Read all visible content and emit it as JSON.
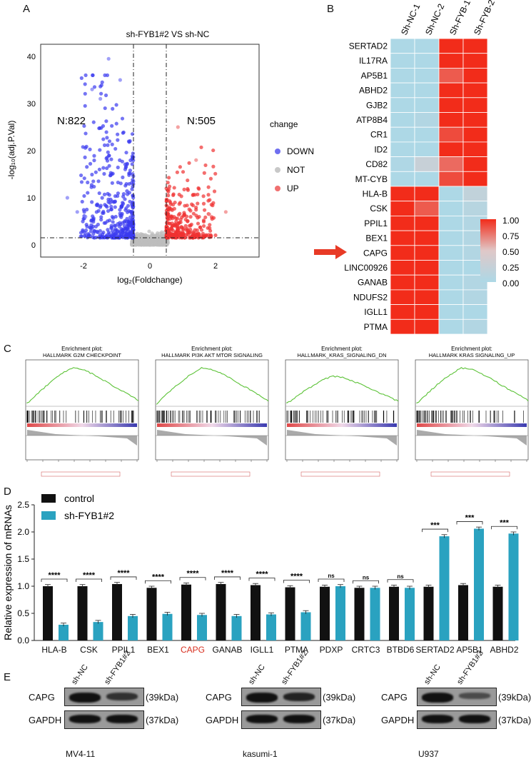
{
  "panels": {
    "a": "A",
    "b": "B",
    "c": "C",
    "d": "D",
    "e": "E"
  },
  "volcano": {
    "title": "sh-FYB1#2  VS sh-NC",
    "xlabel": "log₂(Foldchange)",
    "ylabel": "-log₁₀(adj.P.Val)",
    "n_down": "N:822",
    "n_up": "N:505",
    "legend_title": "change",
    "legend": [
      {
        "label": "DOWN",
        "color": "#6f6ff0"
      },
      {
        "label": "NOT",
        "color": "#c8c8c8"
      },
      {
        "label": "UP",
        "color": "#f07070"
      }
    ],
    "xticks": [
      "-2",
      "0",
      "2"
    ],
    "yticks": [
      "0",
      "10",
      "20",
      "30",
      "40"
    ]
  },
  "heatmap": {
    "columns": [
      "Sh-NC-1",
      "Sh-NC-2",
      "Sh-FYB-1",
      "Sh-FYB-2"
    ],
    "rows": [
      "SERTAD2",
      "IL17RA",
      "AP5B1",
      "ABHD2",
      "GJB2",
      "ATP8B4",
      "CR1",
      "ID2",
      "CD82",
      "MT-CYB",
      "HLA-B",
      "CSK",
      "PPIL1",
      "BEX1",
      "CAPG",
      "LINC00926",
      "GANAB",
      "NDUFS2",
      "IGLL1",
      "PTMA"
    ],
    "values": [
      [
        0,
        0,
        1,
        1
      ],
      [
        0,
        0,
        1,
        1
      ],
      [
        0,
        0,
        0.85,
        1
      ],
      [
        0,
        0,
        1,
        1
      ],
      [
        0,
        0,
        1,
        1
      ],
      [
        0,
        0.05,
        1,
        1
      ],
      [
        0,
        0,
        0.9,
        1
      ],
      [
        0,
        0,
        1,
        1
      ],
      [
        0.02,
        0.25,
        0.8,
        1
      ],
      [
        0,
        0,
        0.9,
        1
      ],
      [
        1,
        1,
        0,
        0.2
      ],
      [
        1,
        0.85,
        0,
        0.1
      ],
      [
        1,
        1,
        0,
        0.05
      ],
      [
        1,
        1,
        0,
        0.05
      ],
      [
        1,
        1,
        0,
        0.05
      ],
      [
        1,
        1,
        0,
        0
      ],
      [
        1,
        1,
        0,
        0.05
      ],
      [
        1,
        1,
        0,
        0.05
      ],
      [
        1,
        1,
        0,
        0
      ],
      [
        1,
        1,
        0,
        0.05
      ]
    ],
    "scale_ticks": [
      "1.00",
      "0.75",
      "0.50",
      "0.25",
      "0.00"
    ],
    "highlight_row": "CAPG"
  },
  "gsea": [
    {
      "top": "Enrichment plot:",
      "name": "HALLMARK G2M CHECKPOINT"
    },
    {
      "top": "Enrichment plot:",
      "name": "HALLMARK PI3K AKT MTOR SIGNALING"
    },
    {
      "top": "Enrichment plot:",
      "name": "HALLMARK_KRAS_SIGNALING_DN"
    },
    {
      "top": "Enrichment plot:",
      "name": "HALLMARK KRAS SIGNALING_UP"
    }
  ],
  "chart_data": {
    "type": "bar",
    "ylabel": "Relative expression of mRNAs",
    "ylim": [
      0,
      2.5
    ],
    "yticks": [
      "0.0",
      "0.5",
      "1.0",
      "1.5",
      "2.0",
      "2.5"
    ],
    "categories": [
      "HLA-B",
      "CSK",
      "PPIL1",
      "BEX1",
      "CAPG",
      "GANAB",
      "IGLL1",
      "PTMA",
      "PDXP",
      "CRTC3",
      "BTBD6",
      "SERTAD2",
      "AP5B1",
      "ABHD2"
    ],
    "highlight_category": "CAPG",
    "series": [
      {
        "name": "control",
        "color": "#111111",
        "values": [
          1.0,
          1.0,
          1.04,
          0.97,
          1.03,
          1.04,
          1.02,
          0.98,
          0.99,
          0.97,
          0.99,
          0.99,
          1.02,
          0.99
        ]
      },
      {
        "name": "sh-FYB1#2",
        "color": "#2aa2c0",
        "values": [
          0.29,
          0.34,
          0.45,
          0.49,
          0.47,
          0.45,
          0.48,
          0.52,
          1.0,
          0.97,
          0.97,
          1.92,
          2.06,
          1.97
        ]
      }
    ],
    "significance": [
      "****",
      "****",
      "****",
      "****",
      "****",
      "****",
      "****",
      "****",
      "ns",
      "ns",
      "ns",
      "***",
      "***",
      "***"
    ]
  },
  "western": {
    "row_labels": [
      "CAPG",
      "GAPDH"
    ],
    "kda": [
      "(39kDa)",
      "(37kDa)"
    ],
    "lanes": [
      "sh-NC",
      "sh-FYB1#2"
    ],
    "cells": [
      "MV4-11",
      "kasumi-1",
      "U937"
    ]
  }
}
